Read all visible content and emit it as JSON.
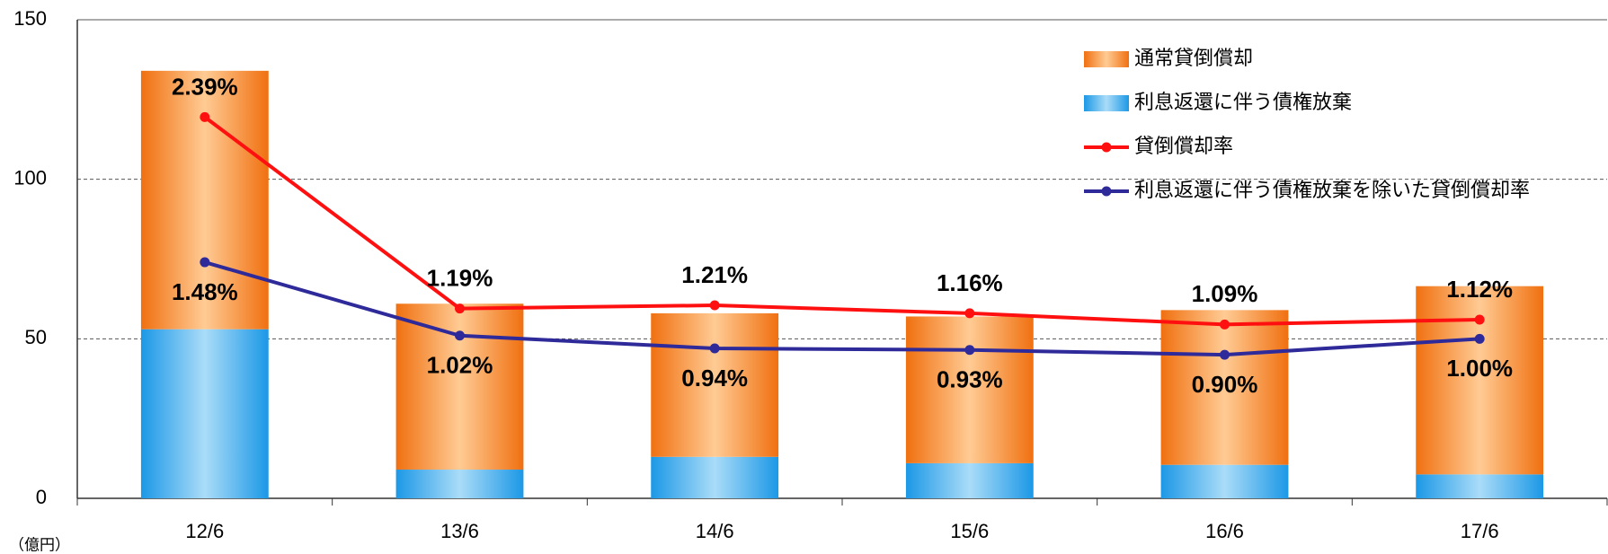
{
  "chart_data": {
    "type": "bar",
    "stacked": true,
    "y_label": "（億円）",
    "categories": [
      "12/6",
      "13/6",
      "14/6",
      "15/6",
      "16/6",
      "17/6"
    ],
    "series": [
      {
        "name": "通常貸倒償却",
        "type": "bar",
        "color": "#f07a1e",
        "values": [
          81,
          52,
          45,
          46,
          48.5,
          59
        ]
      },
      {
        "name": "利息返還に伴う債権放棄",
        "type": "bar",
        "color": "#2aa0ea",
        "values": [
          53,
          9,
          13,
          11,
          10.5,
          7.5
        ]
      },
      {
        "name": "貸倒償却率",
        "type": "line",
        "axis": "y2",
        "color": "#ff1010",
        "values": [
          2.39,
          1.19,
          1.21,
          1.16,
          1.09,
          1.12
        ],
        "value_labels": [
          "2.39%",
          "1.19%",
          "1.21%",
          "1.16%",
          "1.09%",
          "1.12%"
        ]
      },
      {
        "name": "利息返還に伴う債権放棄を除いた貸倒償却率",
        "type": "line",
        "axis": "y2",
        "color": "#2e2a9a",
        "values": [
          1.48,
          1.02,
          0.94,
          0.93,
          0.9,
          1.0
        ],
        "value_labels": [
          "1.48%",
          "1.02%",
          "0.94%",
          "0.93%",
          "0.90%",
          "1.00%"
        ]
      }
    ],
    "ylim": [
      0,
      150
    ],
    "yticks": [
      0,
      50,
      100,
      150
    ],
    "y2lim": [
      0,
      3
    ],
    "grid": true,
    "legend": "top-right"
  }
}
